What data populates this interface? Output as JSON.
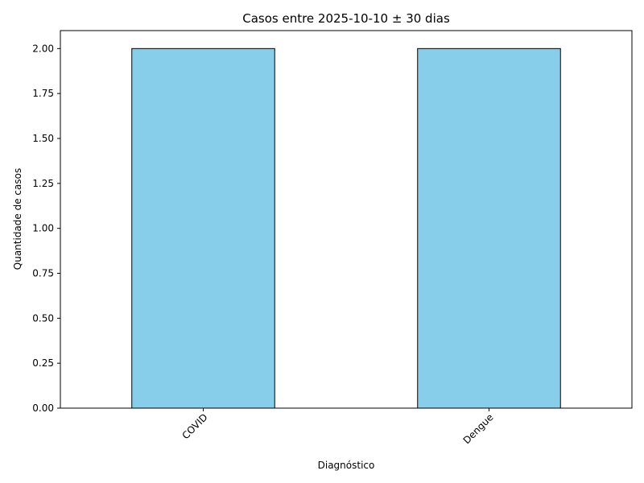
{
  "chart_data": {
    "type": "bar",
    "title": "Casos entre 2025-10-10 ± 30 dias",
    "xlabel": "Diagnóstico",
    "ylabel": "Quantidade de casos",
    "categories": [
      "COVID",
      "Dengue"
    ],
    "values": [
      2,
      2
    ],
    "ylim": [
      0,
      2.1
    ],
    "yticks": [
      "0.00",
      "0.25",
      "0.50",
      "0.75",
      "1.00",
      "1.25",
      "1.50",
      "1.75",
      "2.00"
    ],
    "grid": false,
    "bar_color": "#87CEEB",
    "bar_edge_color": "#000000"
  }
}
